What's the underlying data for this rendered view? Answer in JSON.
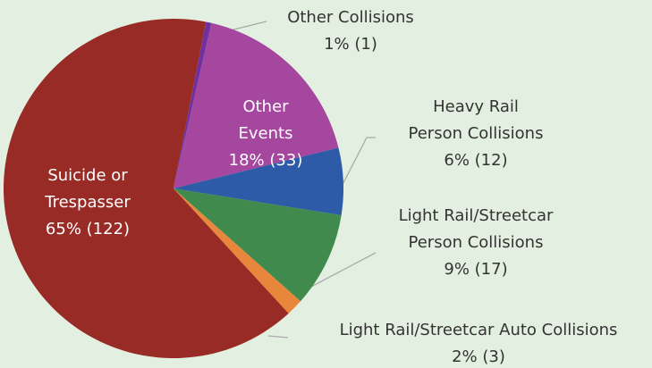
{
  "chart_data": {
    "type": "pie",
    "categories": [
      "Other Collisions",
      "Other\nEvents",
      "Heavy Rail\nPerson Collisions",
      "Light Rail/Streetcar\nPerson Collisions",
      "Light Rail/Streetcar Auto Collisions",
      "Suicide or\nTrespasser"
    ],
    "values": [
      1,
      33,
      12,
      17,
      3,
      122
    ],
    "value_labels": [
      "1% (1)",
      "18% (33)",
      "6% (12)",
      "9% (17)",
      "2% (3)",
      "65% (122)"
    ],
    "colors": [
      "#7030a0",
      "#a5479f",
      "#2e5ba8",
      "#3f8a4c",
      "#e8873b",
      "#982b25"
    ]
  }
}
